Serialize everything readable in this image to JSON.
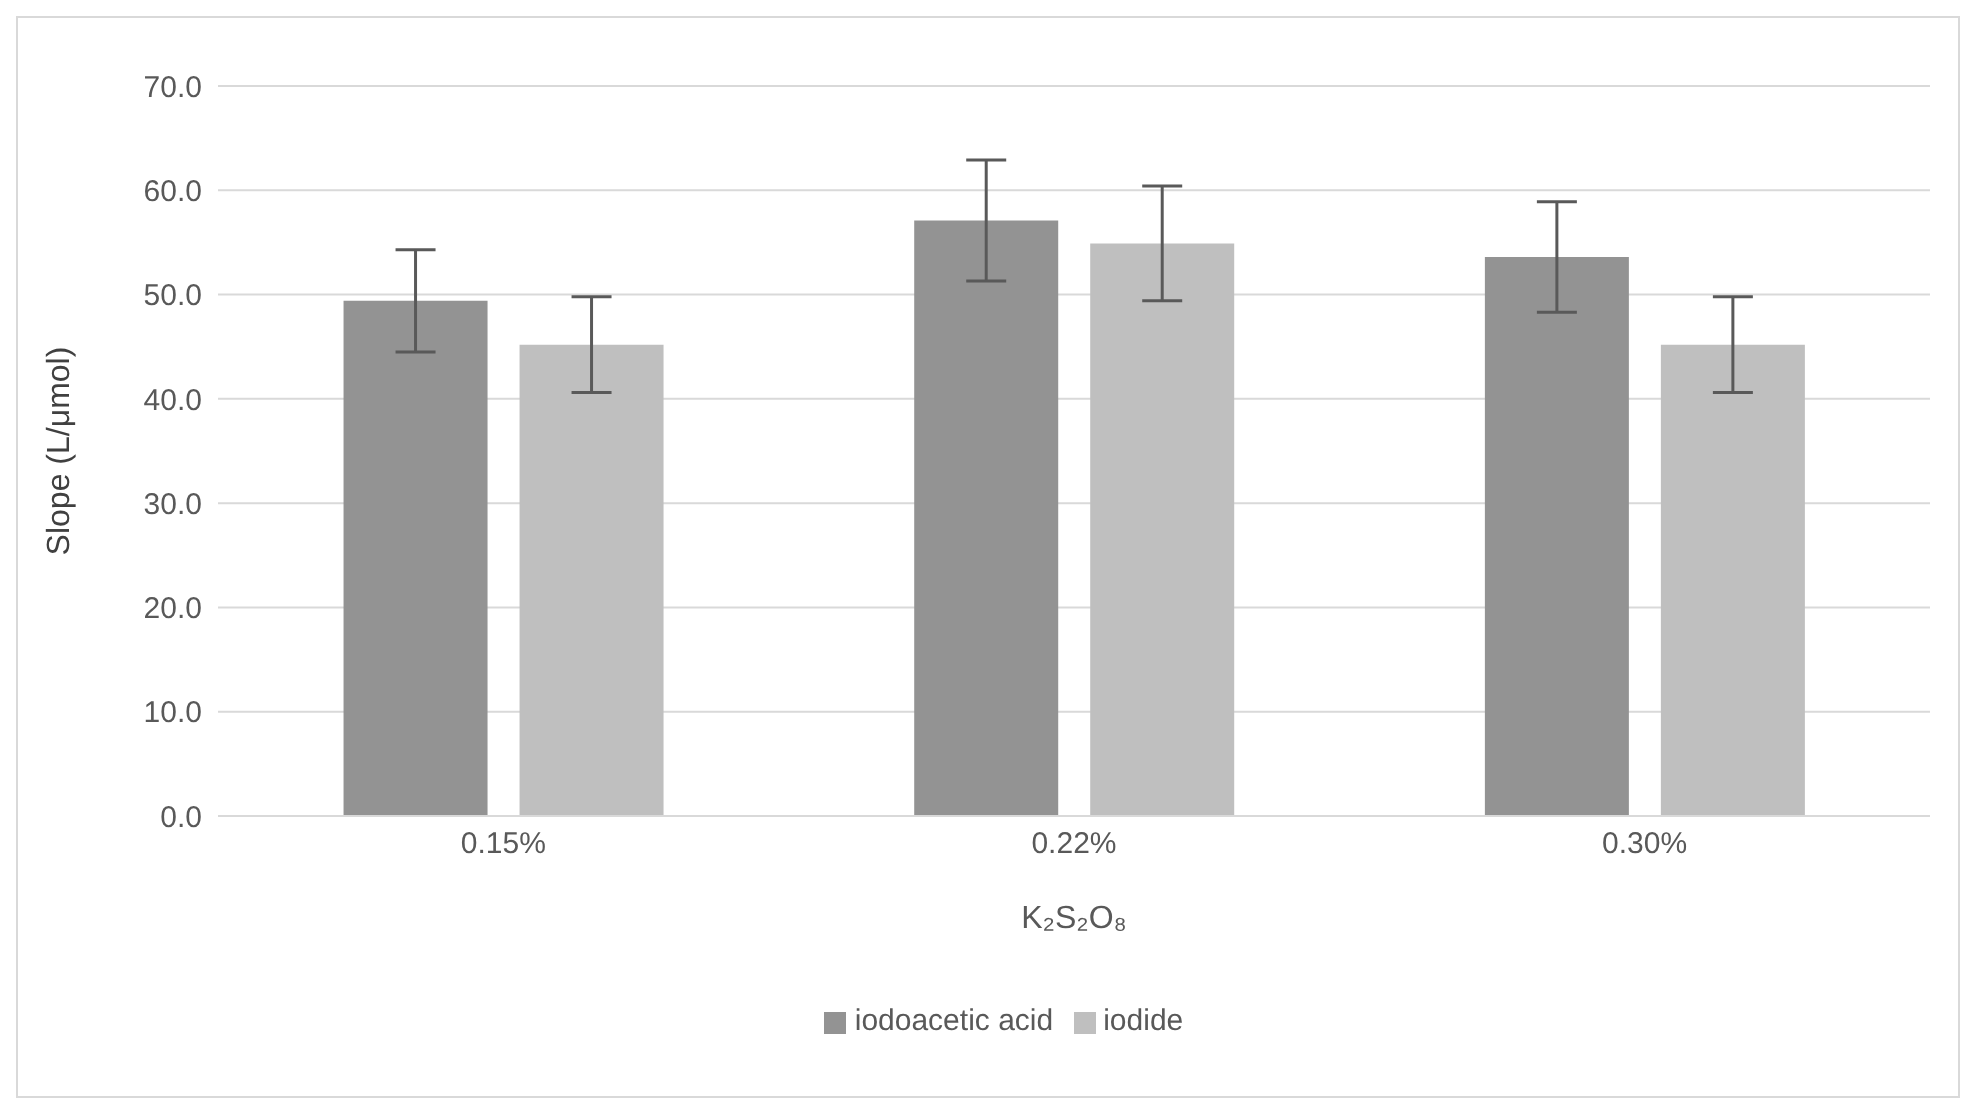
{
  "chart_data": {
    "type": "bar",
    "xlabel": "K₂S₂O₈",
    "ylabel": "Slope (L/μmol)",
    "categories": [
      "0.15%",
      "0.22%",
      "0.30%"
    ],
    "series": [
      {
        "name": "iodoacetic acid",
        "color": "#939393",
        "values": [
          49.4,
          57.1,
          53.6
        ],
        "errors": [
          4.9,
          5.8,
          5.3
        ]
      },
      {
        "name": "iodide",
        "color": "#bfbfbf",
        "values": [
          45.2,
          54.9,
          45.2
        ],
        "errors": [
          4.6,
          5.5,
          4.6
        ]
      }
    ],
    "ylim": [
      0,
      70
    ],
    "yticks": [
      {
        "value": 0,
        "label": "0.0"
      },
      {
        "value": 10,
        "label": "10.0"
      },
      {
        "value": 20,
        "label": "20.0"
      },
      {
        "value": 30,
        "label": "30.0"
      },
      {
        "value": 40,
        "label": "40.0"
      },
      {
        "value": 50,
        "label": "50.0"
      },
      {
        "value": 60,
        "label": "60.0"
      },
      {
        "value": 70,
        "label": "70.0"
      }
    ],
    "grid": "y",
    "legend": "bottom"
  }
}
